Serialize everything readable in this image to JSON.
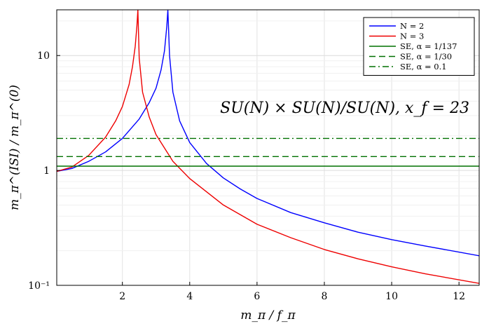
{
  "chart_data": {
    "type": "line",
    "xlabel": "m_π / f_π",
    "ylabel": "m_π^(ISI) / m_π^(0)",
    "xlim": [
      0.05,
      12.6
    ],
    "ylim": [
      0.1,
      25
    ],
    "y_scale": "log",
    "grid": true,
    "legend_position": "top-right",
    "x_ticks": [
      2,
      4,
      6,
      8,
      10,
      12
    ],
    "x_tick_labels": [
      "2",
      "4",
      "6",
      "8",
      "10",
      "12"
    ],
    "y_ticks": [
      0.1,
      1,
      10
    ],
    "y_tick_labels": [
      "10⁻¹",
      "1",
      "10"
    ],
    "annotation": "SU(N) × SU(N)/SU(N), x_f = 23",
    "series": [
      {
        "name": "N = 2",
        "color": "#0000ff",
        "style": "solid",
        "x": [
          0.05,
          0.5,
          1.0,
          1.5,
          2.0,
          2.5,
          2.8,
          3.0,
          3.15,
          3.25,
          3.32,
          3.35,
          3.4,
          3.5,
          3.7,
          4.0,
          4.5,
          5.0,
          5.5,
          6.0,
          7.0,
          8.0,
          9.0,
          10.0,
          11.0,
          12.6
        ],
        "y": [
          0.98,
          1.04,
          1.2,
          1.45,
          1.9,
          2.8,
          3.9,
          5.2,
          7.5,
          11.0,
          18.0,
          25.0,
          10.0,
          4.8,
          2.7,
          1.75,
          1.15,
          0.86,
          0.69,
          0.57,
          0.43,
          0.35,
          0.29,
          0.25,
          0.22,
          0.181
        ]
      },
      {
        "name": "N = 3",
        "color": "#ee0000",
        "style": "solid",
        "x": [
          0.05,
          0.5,
          1.0,
          1.5,
          1.8,
          2.0,
          2.2,
          2.3,
          2.38,
          2.43,
          2.46,
          2.5,
          2.6,
          2.8,
          3.0,
          3.5,
          4.0,
          5.0,
          6.0,
          7.0,
          8.0,
          9.0,
          10.0,
          11.0,
          12.6
        ],
        "y": [
          0.98,
          1.07,
          1.35,
          1.95,
          2.7,
          3.6,
          5.6,
          8.0,
          12.0,
          18.0,
          25.0,
          9.5,
          4.8,
          2.9,
          2.05,
          1.2,
          0.85,
          0.5,
          0.34,
          0.26,
          0.205,
          0.17,
          0.145,
          0.126,
          0.104
        ]
      },
      {
        "name": "SE, α = 1/137",
        "color": "#007000",
        "style": "solid",
        "x": [
          0.05,
          12.6
        ],
        "y": [
          1.09,
          1.09
        ]
      },
      {
        "name": "SE, α = 1/30",
        "color": "#007000",
        "style": "dashed",
        "x": [
          0.05,
          12.6
        ],
        "y": [
          1.32,
          1.32
        ]
      },
      {
        "name": "SE, α = 0.1",
        "color": "#007000",
        "style": "dashdot",
        "x": [
          0.05,
          12.6
        ],
        "y": [
          1.9,
          1.9
        ]
      }
    ]
  }
}
